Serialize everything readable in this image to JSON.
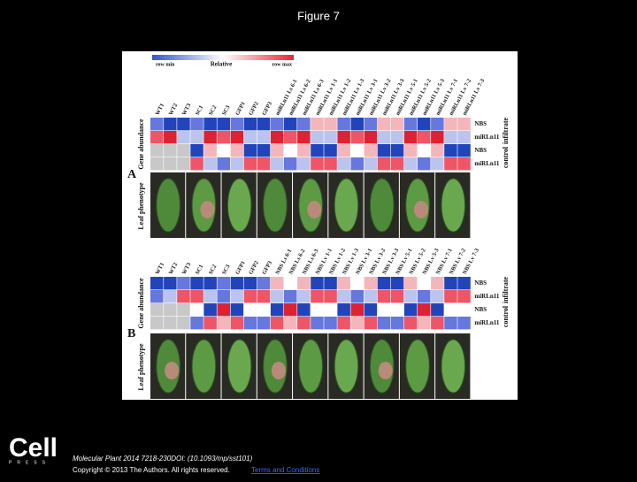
{
  "header": {
    "title": "Figure 7"
  },
  "figure": {
    "legend": {
      "min": "row min",
      "mid": "Relative",
      "max": "row max"
    },
    "panels": [
      {
        "letter": "A",
        "left_labels": [
          "Gene abundance",
          "Leaf phenotype"
        ],
        "columns": [
          "WT1",
          "WT2",
          "WT3",
          "SC1",
          "SC2",
          "SC3",
          "GFP1",
          "GFP2",
          "GFP3",
          "miRLn11 Ls 6-1",
          "miRLn11 Ls 6-2",
          "miRLn11 Ls 6-3",
          "miRLn11 Lv 1-1",
          "miRLn11 Lv 1-2",
          "miRLn11 Lv 1-3",
          "miRLn11 Lv 3-1",
          "miRLn11 Lv 3-2",
          "miRLn11 Lv 3-3",
          "miRLn11 Lv 5-1",
          "miRLn11 Lv 5-2",
          "miRLn11 Lv 5-3",
          "miRLn11 Lv 7-1",
          "miRLn11 Lv 7-2",
          "miRLn11 Lv 7-3"
        ],
        "rows": [
          "NBS",
          "miRLn11",
          "NBS",
          "miRLn11"
        ],
        "groups": [
          "infiltrate",
          "control"
        ]
      },
      {
        "letter": "B",
        "left_labels": [
          "Gene abundance",
          "Leaf phenotype"
        ],
        "columns": [
          "WT1",
          "WT2",
          "WT3",
          "SC1",
          "SC2",
          "SC3",
          "GFP1",
          "GFP2",
          "GFP3",
          "NBS Ls 6-1",
          "NBS Ls 6-2",
          "NBS Ls 6-3",
          "NBS Lv 1-1",
          "NBS Lv 1-2",
          "NBS Lv 1-3",
          "NBS Lv 3-1",
          "NBS Lv 3-2",
          "NBS Lv 3-3",
          "NBS Lv 5-1",
          "NBS Lv 5-2",
          "NBS Lv 5-3",
          "NBS Lv 7-1",
          "NBS Lv 7-2",
          "NBS Lv 7-3"
        ],
        "rows": [
          "NBS",
          "miRLn11",
          "NBS",
          "miRLn11"
        ],
        "groups": [
          "infiltrate",
          "control"
        ]
      }
    ]
  },
  "footer": {
    "logo": "Cell",
    "logo_sub": "PRESS",
    "citation": "Molecular Plant 2014 7218-230DOI: (10.1093/mp/sst101)",
    "copyright": "Copyright © 2013 The Authors. All rights reserved.",
    "link": "Terms and Conditions"
  }
}
